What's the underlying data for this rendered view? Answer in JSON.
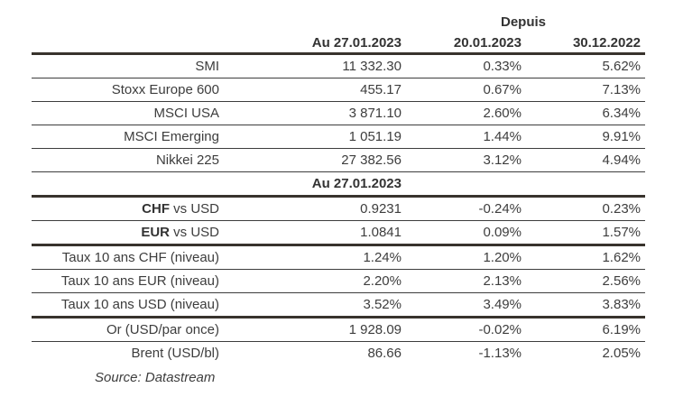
{
  "header": {
    "depuis_label": "Depuis",
    "col_current": "Au 27.01.2023",
    "col_since_1": "20.01.2023",
    "col_since_2": "30.12.2022"
  },
  "subheader": {
    "label": "Au 27.01.2023"
  },
  "rows": {
    "smi": {
      "label": "SMI",
      "v1": "11 332.30",
      "v2": "0.33%",
      "v3": "5.62%"
    },
    "stoxx": {
      "label": "Stoxx Europe 600",
      "v1": "455.17",
      "v2": "0.67%",
      "v3": "7.13%"
    },
    "msci_usa": {
      "label": "MSCI USA",
      "v1": "3 871.10",
      "v2": "2.60%",
      "v3": "6.34%"
    },
    "msci_emerging": {
      "label": "MSCI Emerging",
      "v1": "1 051.19",
      "v2": "1.44%",
      "v3": "9.91%"
    },
    "nikkei": {
      "label": "Nikkei 225",
      "v1": "27 382.56",
      "v2": "3.12%",
      "v3": "4.94%"
    },
    "chf_usd": {
      "label_bold": "CHF",
      "label_rest": " vs USD",
      "v1": "0.9231",
      "v2": "-0.24%",
      "v3": "0.23%"
    },
    "eur_usd": {
      "label_bold": "EUR",
      "label_rest": " vs USD",
      "v1": "1.0841",
      "v2": "0.09%",
      "v3": "1.57%"
    },
    "taux_chf": {
      "label": "Taux 10 ans CHF (niveau)",
      "v1": "1.24%",
      "v2": "1.20%",
      "v3": "1.62%"
    },
    "taux_eur": {
      "label": "Taux 10 ans EUR (niveau)",
      "v1": "2.20%",
      "v2": "2.13%",
      "v3": "2.56%"
    },
    "taux_usd": {
      "label": "Taux 10 ans USD (niveau)",
      "v1": "3.52%",
      "v2": "3.49%",
      "v3": "3.83%"
    },
    "or": {
      "label": "Or (USD/par once)",
      "v1": "1 928.09",
      "v2": "-0.02%",
      "v3": "6.19%"
    },
    "brent": {
      "label": "Brent (USD/bl)",
      "v1": "86.66",
      "v2": "-1.13%",
      "v3": "2.05%"
    }
  },
  "source": {
    "label": "Source: Datastream"
  },
  "colors": {
    "text": "#3d3d3d",
    "header_text": "#333333",
    "thin_rule": "#3d3d3d",
    "thick_rule": "#38332d",
    "background": "#ffffff"
  }
}
